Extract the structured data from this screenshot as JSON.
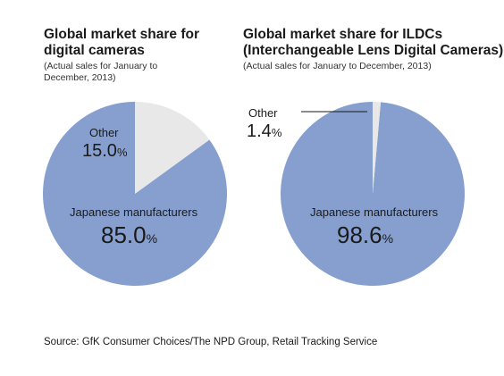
{
  "chart_data": [
    {
      "type": "pie",
      "title": "Global market share for digital cameras",
      "subtitle": "(Actual sales for January to December, 2013)",
      "slices": [
        {
          "label": "Japanese manufacturers",
          "value": 85.0,
          "display": "85.0",
          "color": "#869fce"
        },
        {
          "label": "Other",
          "value": 15.0,
          "display": "15.0",
          "color": "#e8e8e8"
        }
      ],
      "unit": "%"
    },
    {
      "type": "pie",
      "title": "Global market share for ILDCs (Interchangeable Lens Digital Cameras)",
      "subtitle": "(Actual sales for January to December, 2013)",
      "slices": [
        {
          "label": "Japanese manufacturers",
          "value": 98.6,
          "display": "98.6",
          "color": "#869fce"
        },
        {
          "label": "Other",
          "value": 1.4,
          "display": "1.4",
          "color": "#e8e8e8"
        }
      ],
      "unit": "%"
    }
  ],
  "text": {
    "c1_title_1": "Global market share for",
    "c1_title_2": "digital cameras",
    "c1_sub_1": "(Actual sales for January to",
    "c1_sub_2": "December, 2013)",
    "c2_title_1": "Global market share for ILDCs",
    "c2_title_2": "(Interchangeable Lens Digital Cameras)",
    "c2_sub_1": "(Actual sales for January to December, 2013)"
  },
  "source": "Source: GfK Consumer Choices/The NPD Group, Retail Tracking Service"
}
